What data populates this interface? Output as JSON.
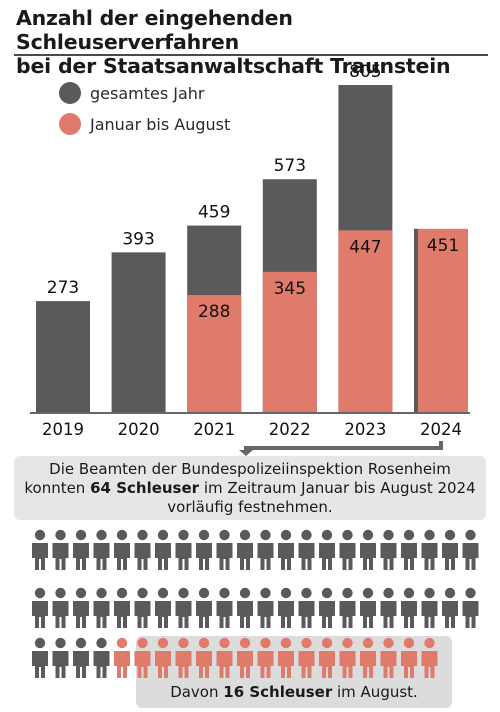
{
  "title_line1": "Anzahl der eingehenden Schleuserverfahren",
  "title_line2": "bei der Staatsanwaltschaft Traunstein",
  "colors": {
    "full_year": "#5a5a5a",
    "jan_aug": "#e07b6c",
    "axis": "#333333"
  },
  "info": {
    "line1": "Die Beamten der Bundespolizeiinspektion Rosenheim",
    "line2_before": "konnten ",
    "line2_bold": "64 Schleuser",
    "line2_after": " im Zeitraum Januar bis August 2024",
    "line3": "vorläufig festnehmen."
  },
  "note": {
    "before": "Davon ",
    "bold": "16 Schleuser",
    "after": " im August."
  },
  "people": {
    "total": 64,
    "highlighted": 16,
    "highlight_label": "August"
  },
  "chart_data": {
    "type": "bar",
    "categories": [
      "2019",
      "2020",
      "2021",
      "2022",
      "2023",
      "2024"
    ],
    "series": [
      {
        "name": "gesamtes Jahr",
        "values": [
          273,
          393,
          459,
          573,
          805,
          null
        ],
        "color": "#5a5a5a"
      },
      {
        "name": "Januar bis August",
        "values": [
          null,
          null,
          288,
          345,
          447,
          451
        ],
        "color": "#e07b6c"
      }
    ],
    "ylim": [
      0,
      805
    ],
    "legend": "top-left",
    "grid": false
  }
}
